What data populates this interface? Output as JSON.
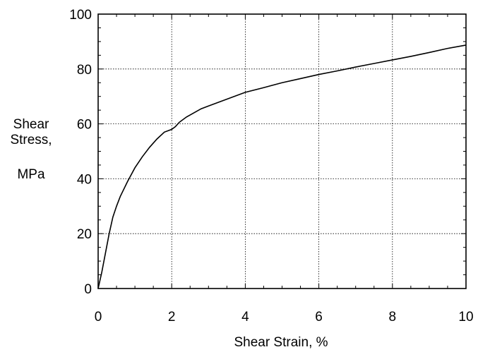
{
  "chart_data": {
    "type": "line",
    "title": "",
    "xlabel": "Shear Strain, %",
    "ylabel_lines": [
      "Shear",
      "Stress,",
      "MPa"
    ],
    "xlim": [
      0,
      10
    ],
    "ylim": [
      0,
      100
    ],
    "xticks": [
      0,
      2,
      4,
      6,
      8,
      10
    ],
    "yticks": [
      0,
      20,
      40,
      60,
      80,
      100
    ],
    "grid": true,
    "series": [
      {
        "x": [
          0,
          0.1,
          0.2,
          0.3,
          0.4,
          0.5,
          0.6,
          0.8,
          1.0,
          1.2,
          1.4,
          1.6,
          1.8,
          2.0,
          2.1,
          2.2,
          2.4,
          2.6,
          2.8,
          3.0,
          3.4,
          3.8,
          4.0,
          4.5,
          5.0,
          5.5,
          6.0,
          6.5,
          7.0,
          7.5,
          8.0,
          8.5,
          9.0,
          9.5,
          10.0
        ],
        "y": [
          0,
          6,
          13,
          20,
          26,
          30,
          33.5,
          39,
          44,
          48,
          51.5,
          54.5,
          57,
          58,
          59,
          60.5,
          62.5,
          64,
          65.5,
          66.5,
          68.5,
          70.5,
          71.5,
          73.2,
          75,
          76.5,
          78,
          79.3,
          80.7,
          82,
          83.3,
          84.6,
          86,
          87.5,
          88.7
        ]
      }
    ]
  }
}
